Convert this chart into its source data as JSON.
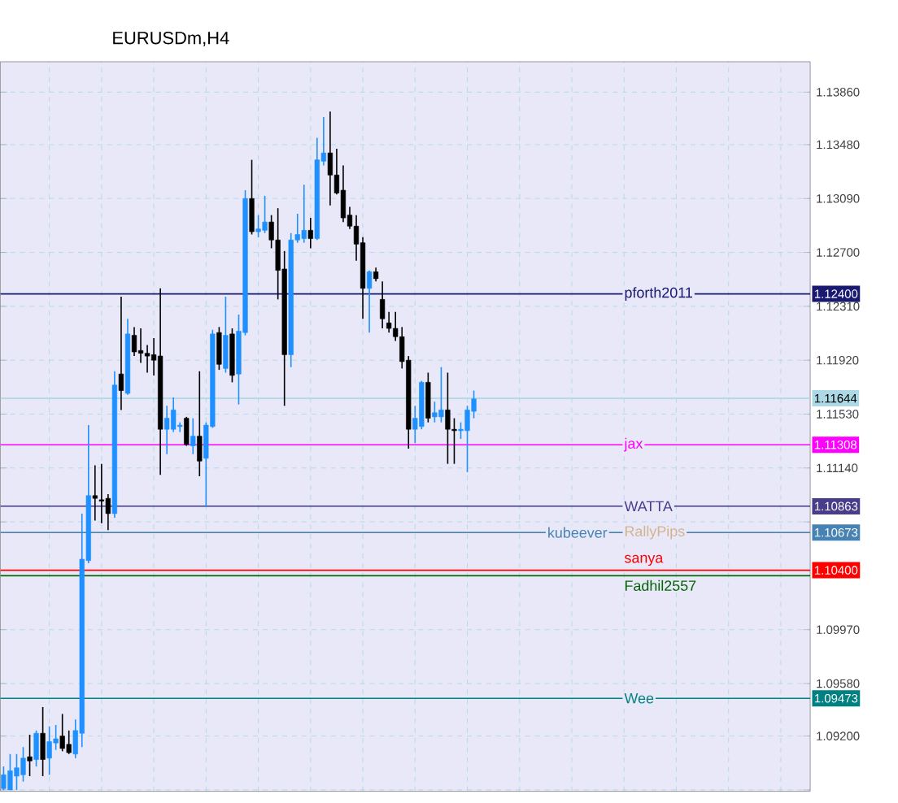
{
  "chart_data": {
    "type": "candlestick",
    "title": "EURUSDm,H4",
    "categories": [
      null,
      null,
      null,
      null,
      null,
      null,
      null,
      null,
      null,
      null,
      null,
      null,
      null,
      null,
      null,
      null,
      null,
      null,
      null,
      null,
      null,
      null,
      null,
      null,
      null,
      null,
      null,
      null,
      null,
      null,
      null,
      null,
      null,
      null,
      null,
      null,
      null,
      null,
      null,
      null,
      null,
      null,
      null,
      null,
      null,
      null,
      null,
      null,
      null,
      null,
      null,
      null,
      null,
      null,
      null,
      null,
      null,
      null,
      null,
      null,
      null,
      null,
      null,
      null,
      null,
      null,
      null,
      null,
      null,
      null,
      null,
      null,
      null,
      null,
      null,
      null,
      null,
      null,
      null,
      null,
      null,
      null,
      null,
      null,
      null,
      null,
      null,
      null,
      null,
      null,
      null,
      null,
      null,
      null,
      null,
      null,
      null,
      null,
      null,
      null,
      null,
      null,
      null,
      null,
      null,
      null,
      null,
      null,
      null,
      null,
      null,
      null,
      null,
      null,
      null,
      null,
      null,
      null,
      null,
      null,
      null,
      null,
      null,
      null
    ],
    "ohlc": [
      [
        1.0882,
        1.0898,
        1.0881,
        1.0892
      ],
      [
        1.0881,
        1.0907,
        1.0881,
        1.0895
      ],
      [
        1.0891,
        1.0907,
        1.0881,
        1.0897
      ],
      [
        1.0892,
        1.0912,
        1.0887,
        1.0904
      ],
      [
        1.0905,
        1.0921,
        1.0891,
        1.0902
      ],
      [
        1.0903,
        1.0924,
        1.0898,
        1.0922
      ],
      [
        1.0922,
        1.0941,
        1.0891,
        1.0903
      ],
      [
        1.0904,
        1.0927,
        1.0892,
        1.0916
      ],
      [
        1.0915,
        1.0928,
        1.091,
        1.0918
      ],
      [
        1.092,
        1.0936,
        1.0909,
        1.0911
      ],
      [
        1.0914,
        1.0924,
        1.0907,
        1.0908
      ],
      [
        1.0907,
        1.0932,
        1.0904,
        1.0924
      ],
      [
        1.0922,
        1.1081,
        1.0912,
        1.1048
      ],
      [
        1.1047,
        1.1145,
        1.1045,
        1.1094
      ],
      [
        1.1094,
        1.1116,
        1.1076,
        1.1092
      ],
      [
        1.1091,
        1.1117,
        1.1074,
        1.109
      ],
      [
        1.1092,
        1.1095,
        1.1069,
        1.1081
      ],
      [
        1.1081,
        1.1184,
        1.1078,
        1.1174
      ],
      [
        1.1182,
        1.1238,
        1.1156,
        1.117
      ],
      [
        1.1168,
        1.1222,
        1.1167,
        1.1211
      ],
      [
        1.121,
        1.1216,
        1.1195,
        1.1198
      ],
      [
        1.1199,
        1.1215,
        1.119,
        1.1197
      ],
      [
        1.1197,
        1.1203,
        1.1183,
        1.1195
      ],
      [
        1.1196,
        1.1208,
        1.1181,
        1.1192
      ],
      [
        1.1195,
        1.1244,
        1.1109,
        1.1142
      ],
      [
        1.1142,
        1.1159,
        1.1124,
        1.115
      ],
      [
        1.1142,
        1.1165,
        1.114,
        1.1156
      ],
      [
        1.1144,
        1.1147,
        1.114,
        1.1145
      ],
      [
        1.115,
        1.1151,
        1.113,
        1.1131
      ],
      [
        1.113,
        1.115,
        1.1124,
        1.1137
      ],
      [
        1.1137,
        1.1184,
        1.1108,
        1.1119
      ],
      [
        1.1121,
        1.1147,
        1.1086,
        1.1145
      ],
      [
        1.1144,
        1.1214,
        1.1143,
        1.1211
      ],
      [
        1.1212,
        1.1216,
        1.1185,
        1.1189
      ],
      [
        1.1186,
        1.1238,
        1.1183,
        1.121
      ],
      [
        1.1211,
        1.1215,
        1.1176,
        1.1181
      ],
      [
        1.1182,
        1.1225,
        1.116,
        1.1213
      ],
      [
        1.1212,
        1.1315,
        1.121,
        1.1309
      ],
      [
        1.1309,
        1.1337,
        1.1283,
        1.1285
      ],
      [
        1.1285,
        1.1297,
        1.1281,
        1.1287
      ],
      [
        1.1286,
        1.1311,
        1.1284,
        1.1292
      ],
      [
        1.1292,
        1.1297,
        1.1273,
        1.1279
      ],
      [
        1.1279,
        1.1302,
        1.1236,
        1.1257
      ],
      [
        1.1258,
        1.1271,
        1.1159,
        1.1196
      ],
      [
        1.1196,
        1.1284,
        1.1187,
        1.1279
      ],
      [
        1.1279,
        1.1298,
        1.1277,
        1.1283
      ],
      [
        1.128,
        1.1319,
        1.1277,
        1.1286
      ],
      [
        1.1286,
        1.1295,
        1.1273,
        1.128
      ],
      [
        1.128,
        1.1353,
        1.1279,
        1.1337
      ],
      [
        1.1336,
        1.1368,
        1.1333,
        1.1342
      ],
      [
        1.1342,
        1.1372,
        1.1304,
        1.1326
      ],
      [
        1.1326,
        1.1345,
        1.1312,
        1.1313
      ],
      [
        1.1315,
        1.1333,
        1.1292,
        1.1295
      ],
      [
        1.1297,
        1.1303,
        1.1287,
        1.1289
      ],
      [
        1.1289,
        1.1297,
        1.1264,
        1.1276
      ],
      [
        1.1277,
        1.1281,
        1.1222,
        1.1244
      ],
      [
        1.1244,
        1.1257,
        1.1212,
        1.1256
      ],
      [
        1.1256,
        1.1259,
        1.1249,
        1.1251
      ],
      [
        1.1236,
        1.1249,
        1.1215,
        1.1222
      ],
      [
        1.1219,
        1.1227,
        1.1212,
        1.1215
      ],
      [
        1.1215,
        1.1227,
        1.1206,
        1.1209
      ],
      [
        1.1209,
        1.1216,
        1.1186,
        1.1191
      ],
      [
        1.1192,
        1.1195,
        1.1128,
        1.1142
      ],
      [
        1.1142,
        1.1159,
        1.1132,
        1.115
      ],
      [
        1.1144,
        1.1177,
        1.1142,
        1.1176
      ],
      [
        1.1176,
        1.1183,
        1.1147,
        1.115
      ],
      [
        1.1151,
        1.1162,
        1.1147,
        1.1154
      ],
      [
        1.1151,
        1.1187,
        1.1147,
        1.1156
      ],
      [
        1.1156,
        1.1183,
        1.1117,
        1.1142
      ],
      [
        1.1142,
        1.115,
        1.1117,
        1.1141
      ],
      [
        1.1141,
        1.1147,
        1.1135,
        1.1142
      ],
      [
        1.1141,
        1.1159,
        1.1111,
        1.1156
      ],
      [
        1.1155,
        1.117,
        1.115,
        1.1164
      ],
      null,
      null,
      null,
      null,
      null,
      null,
      null,
      null,
      null,
      null,
      null,
      null,
      null,
      null,
      null,
      null,
      null,
      null,
      null,
      null,
      null,
      null,
      null,
      null,
      null,
      null,
      null,
      null,
      null,
      null,
      null,
      null,
      null,
      null,
      null,
      null,
      null,
      null,
      null,
      null,
      null,
      null,
      null,
      null,
      null,
      null,
      null,
      null,
      null,
      null,
      null
    ],
    "colors": [
      "#1e90ff",
      "#1e90ff",
      "#1e90ff",
      "#1e90ff",
      "#000000",
      "#1e90ff",
      "#000000",
      "#1e90ff",
      "#1e90ff",
      "#000000",
      "#000000",
      "#1e90ff",
      "#1e90ff",
      "#1e90ff",
      "#000000",
      "#000000",
      "#000000",
      "#1e90ff",
      "#000000",
      "#1e90ff",
      "#000000",
      "#000000",
      "#000000",
      "#000000",
      "#000000",
      "#1e90ff",
      "#1e90ff",
      "#1e90ff",
      "#000000",
      "#1e90ff",
      "#000000",
      "#1e90ff",
      "#1e90ff",
      "#000000",
      "#1e90ff",
      "#000000",
      "#1e90ff",
      "#1e90ff",
      "#000000",
      "#1e90ff",
      "#1e90ff",
      "#000000",
      "#000000",
      "#000000",
      "#1e90ff",
      "#1e90ff",
      "#1e90ff",
      "#000000",
      "#1e90ff",
      "#1e90ff",
      "#000000",
      "#000000",
      "#000000",
      "#000000",
      "#000000",
      "#000000",
      "#1e90ff",
      "#000000",
      "#000000",
      "#000000",
      "#000000",
      "#000000",
      "#000000",
      "#1e90ff",
      "#1e90ff",
      "#000000",
      "#1e90ff",
      "#1e90ff",
      "#000000",
      "#000000",
      "#1e90ff",
      "#1e90ff",
      "#1e90ff",
      null,
      null,
      null,
      null,
      null,
      null,
      null,
      null,
      null,
      null,
      null,
      null,
      null,
      null,
      null,
      null,
      null,
      null,
      null,
      null,
      null,
      null,
      null,
      null,
      null,
      null,
      null,
      null,
      null,
      null,
      null,
      null,
      null,
      null,
      null,
      null,
      null,
      null,
      null,
      null,
      null,
      null,
      null,
      null,
      null,
      null,
      null,
      null,
      null,
      null,
      null
    ],
    "annotations": [
      {
        "text": "1.12400",
        "y": 1.124
      },
      {
        "text": "1.11644",
        "y": 1.11644
      },
      {
        "text": "1.11308",
        "y": 1.11308
      },
      {
        "text": "1.10863",
        "y": 1.10863
      },
      {
        "text": "1.10673",
        "y": 1.10673
      },
      {
        "text": "1.10400",
        "y": 1.104
      },
      {
        "text": "1.09473",
        "y": 1.09473
      }
    ],
    "ylim": [
      1.088,
      1.1408
    ],
    "yticks": [
      {
        "value": 1.0881,
        "label": null
      },
      {
        "value": 1.092,
        "label": "1.09200"
      },
      {
        "value": 1.0958,
        "label": "1.09580"
      },
      {
        "value": 1.0997,
        "label": "1.09970"
      },
      {
        "value": 1.1036,
        "label": null
      },
      {
        "value": 1.1075,
        "label": null
      },
      {
        "value": 1.1114,
        "label": "1.11140"
      },
      {
        "value": 1.1153,
        "label": "1.11530"
      },
      {
        "value": 1.1192,
        "label": "1.11920"
      },
      {
        "value": 1.1231,
        "label": "1.12310"
      },
      {
        "value": 1.127,
        "label": "1.12700"
      },
      {
        "value": 1.1309,
        "label": "1.13090"
      },
      {
        "value": 1.1348,
        "label": "1.13480"
      },
      {
        "value": 1.1386,
        "label": "1.13860"
      }
    ],
    "grid": true,
    "tick_labels": "y",
    "ref_lines": [
      {
        "axis": "y",
        "value": 1.124,
        "label": "pforth2011",
        "color": "#191970"
      },
      {
        "axis": "y",
        "value": 1.11644,
        "label": null,
        "color": "#add8e6"
      },
      {
        "axis": "y",
        "value": 1.11308,
        "label": "jax",
        "color": "#ff00ff"
      },
      {
        "axis": "y",
        "value": 1.10863,
        "label": "WATTA",
        "color": "#483d8b"
      },
      {
        "axis": "y",
        "value": 1.10673,
        "label": "RallyPips",
        "color": "#d2b48c"
      },
      {
        "axis": "y",
        "value": 1.10673,
        "label": "kubeever",
        "color": "#4682b4"
      },
      {
        "axis": "y",
        "value": 1.1036,
        "label": "Fadhil2557",
        "color": "#006400"
      },
      {
        "axis": "y",
        "value": 1.104,
        "label": "sanya",
        "color": "#ff0000"
      },
      {
        "axis": "y",
        "value": 1.09473,
        "label": "Wee",
        "color": "#008080"
      }
    ]
  }
}
